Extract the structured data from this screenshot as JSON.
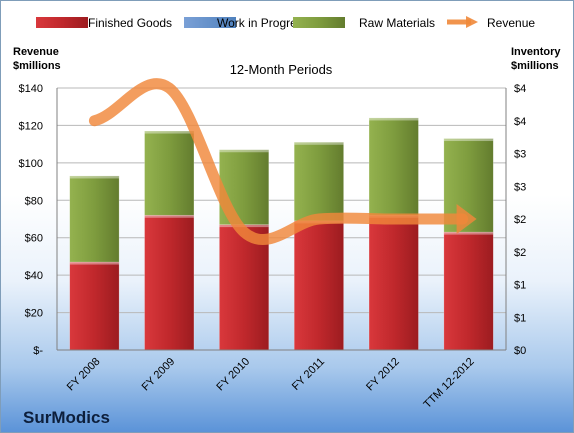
{
  "company": "SurModics",
  "chart_data": {
    "type": "bar",
    "subtitle": "12-Month Periods",
    "categories": [
      "FY 2008",
      "FY 2009",
      "FY 2010",
      "FY 2011",
      "FY 2012",
      "TTM 12-2012"
    ],
    "stacked": true,
    "series": [
      {
        "name": "Finished Goods",
        "axis": "left",
        "color": "#c0282c",
        "values": [
          47,
          72,
          67,
          69,
          72,
          63
        ]
      },
      {
        "name": "Work in Progress",
        "axis": "left",
        "color": "#4f81bd",
        "values": [
          0,
          0,
          0,
          0,
          0,
          0
        ]
      },
      {
        "name": "Raw Materials",
        "axis": "left",
        "color": "#7e9c3e",
        "values": [
          46,
          45,
          40,
          42,
          52,
          50
        ]
      },
      {
        "name": "Revenue",
        "axis": "right",
        "type": "line",
        "color": "#f0883a",
        "values": [
          3.5,
          4.0,
          1.8,
          2.0,
          2.0,
          2.0
        ]
      }
    ],
    "y_left": {
      "title": [
        "Revenue",
        "$millions"
      ],
      "range": [
        0,
        140
      ],
      "ticks": [
        0,
        20,
        40,
        60,
        80,
        100,
        120,
        140
      ],
      "tick_labels": [
        "$-",
        "$20",
        "$40",
        "$60",
        "$80",
        "$100",
        "$120",
        "$140"
      ]
    },
    "y_right": {
      "title": [
        "Inventory",
        "$millions"
      ],
      "range": [
        0,
        4
      ],
      "tick_labels": [
        "$0",
        "$1",
        "$1",
        "$2",
        "$2",
        "$3",
        "$3",
        "$4",
        "$4"
      ]
    },
    "legend_position": "top",
    "grid": true
  }
}
